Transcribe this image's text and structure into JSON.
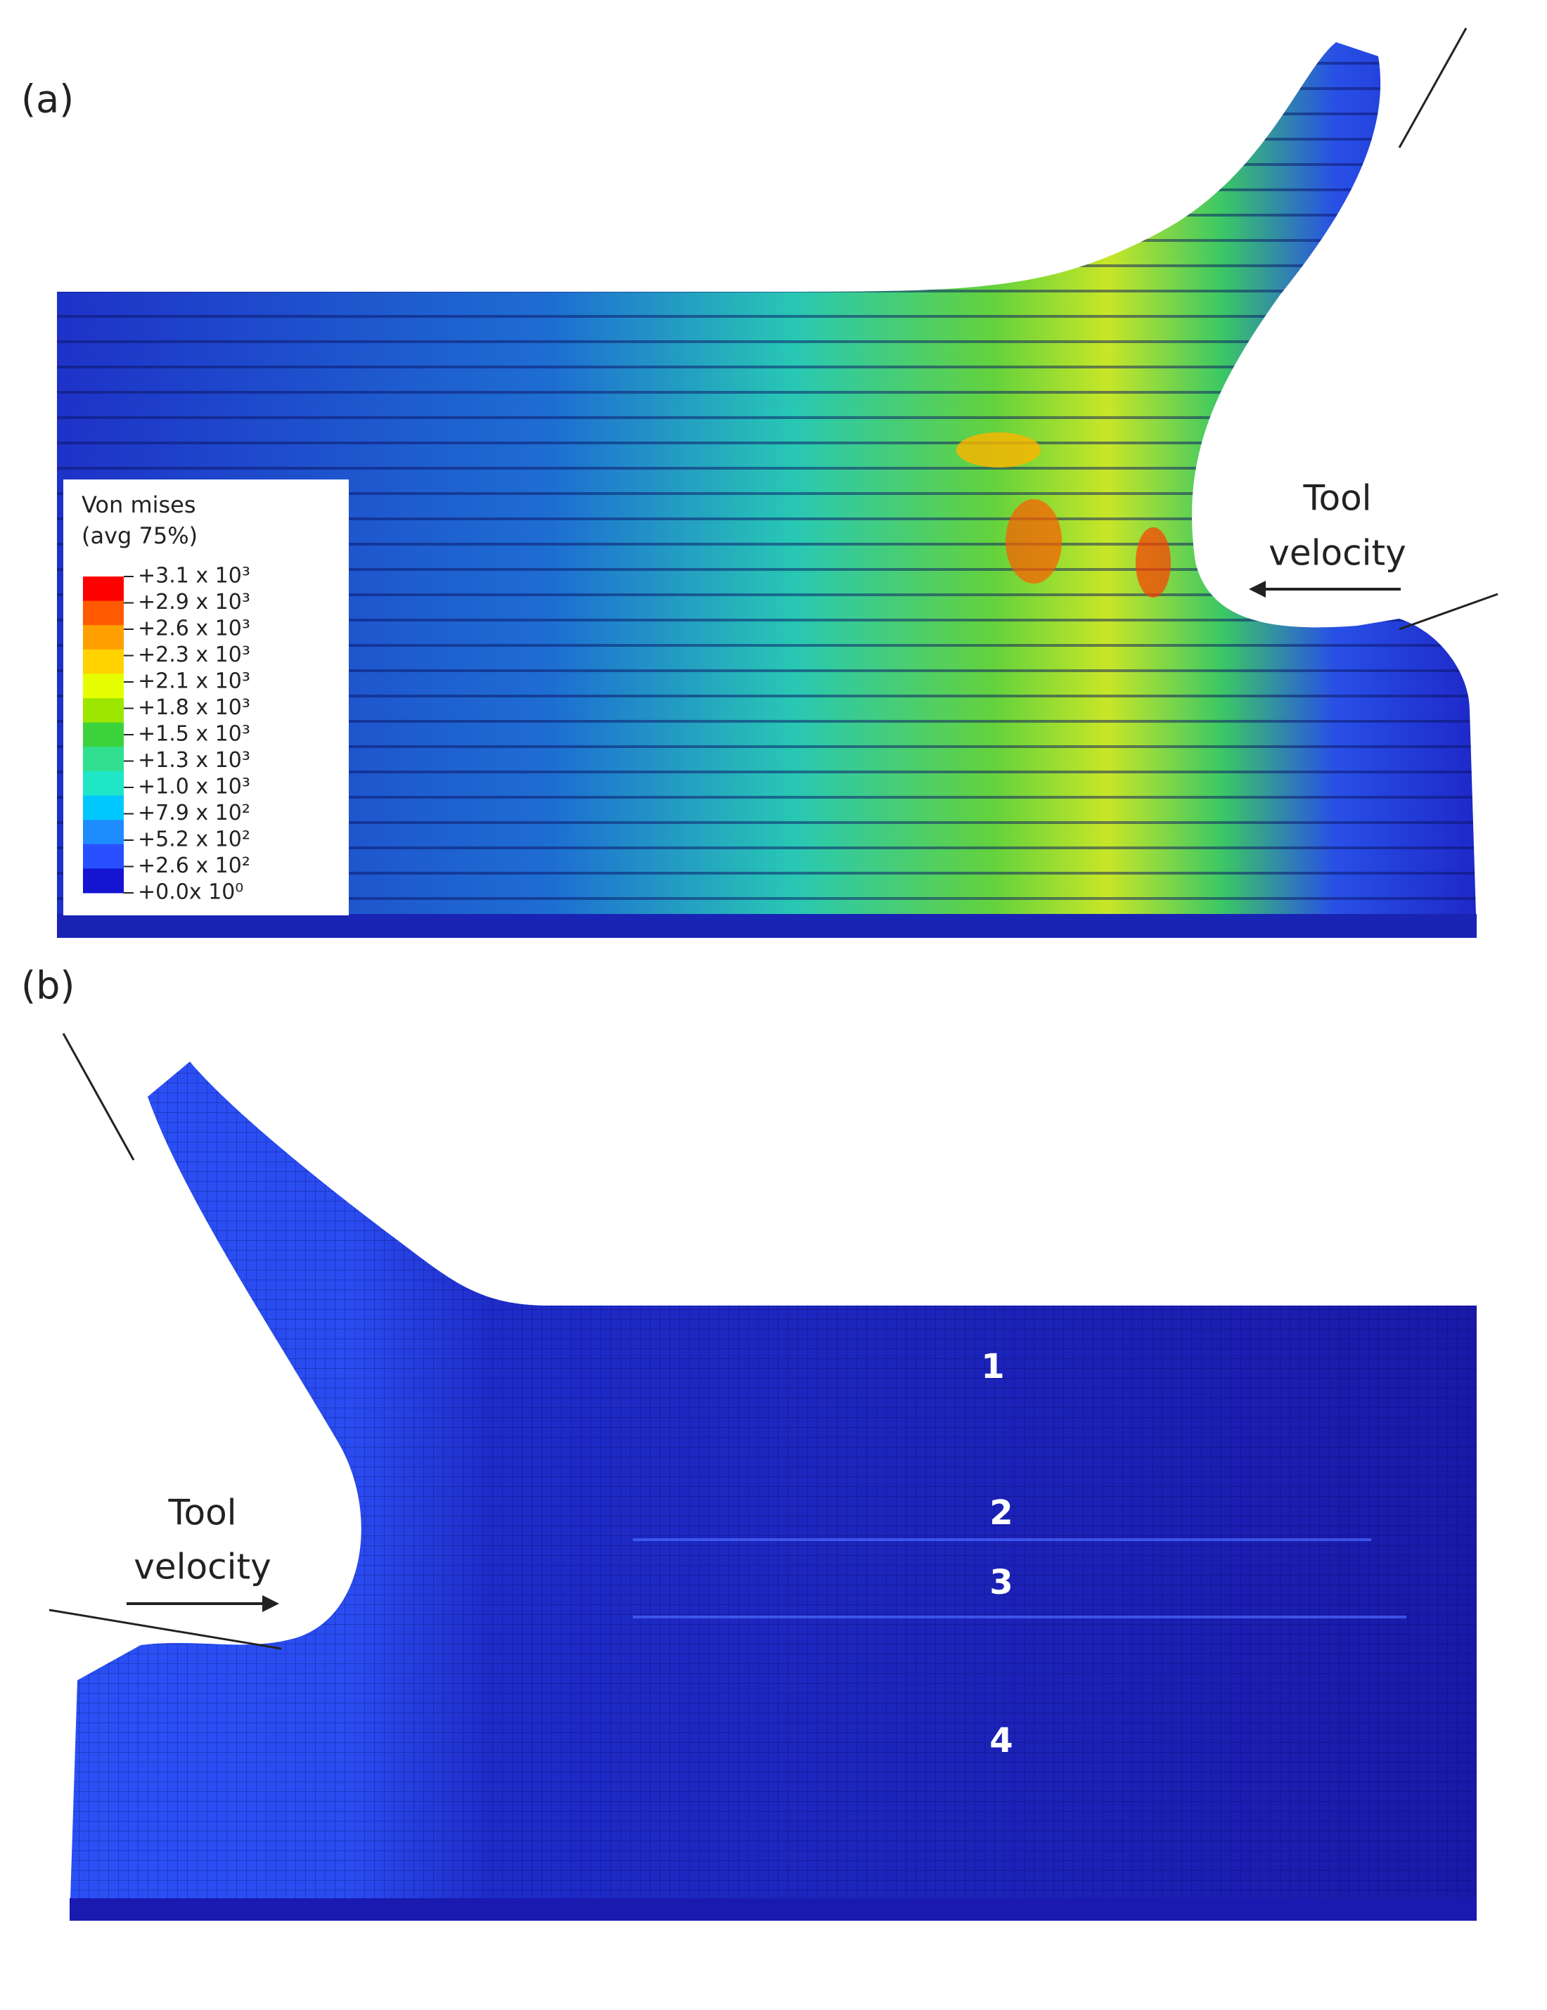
{
  "panels": [
    {
      "label": "(a)",
      "tool_label": [
        "Tool",
        "velocity"
      ],
      "legend": {
        "title": [
          "Von mises",
          "(avg 75%)"
        ],
        "labels": [
          "+3.1 x 10³",
          "+2.9 x 10³",
          "+2.6 x 10³",
          "+2.3 x 10³",
          "+2.1 x 10³",
          "+1.8 x 10³",
          "+1.5 x 10³",
          "+1.3 x 10³",
          "+1.0 x 10³",
          "+7.9 x 10²",
          "+5.2 x 10²",
          "+2.6 x 10²",
          "+0.0x 10⁰"
        ],
        "colors": [
          "#ff0000",
          "#ff5a00",
          "#ffa000",
          "#ffd200",
          "#e6ff00",
          "#9ce600",
          "#3cd23c",
          "#30e090",
          "#20e6c8",
          "#00c8ff",
          "#1e8cff",
          "#2850ff",
          "#1414d2"
        ]
      }
    },
    {
      "label": "(b)",
      "tool_label": [
        "Tool",
        "velocity"
      ],
      "regions": [
        "1",
        "2",
        "3",
        "4"
      ]
    }
  ]
}
